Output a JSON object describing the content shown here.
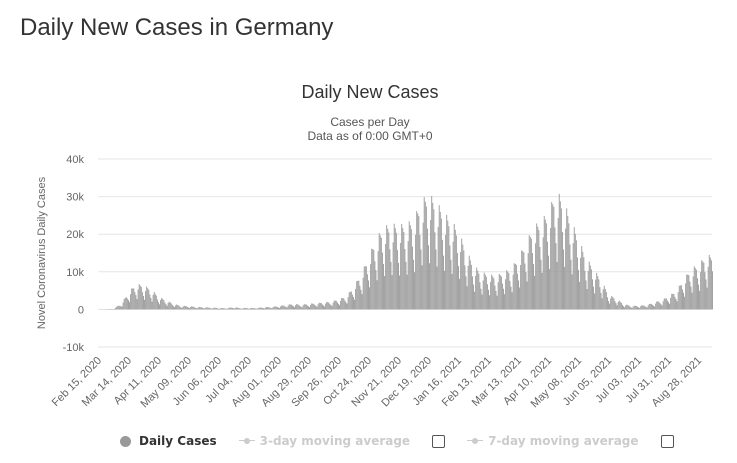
{
  "page_title": "Daily New Cases in Germany",
  "colors": {
    "bar": "#999999",
    "grid": "#e6e6e6",
    "text": "#333333",
    "legend_inactive": "#cccccc"
  },
  "legend": {
    "daily_cases": "Daily Cases",
    "avg3": "3-day moving average",
    "avg7": "7-day moving average"
  },
  "chart_data": {
    "type": "bar",
    "title": "Daily New Cases",
    "subtitle": "Cases per Day",
    "subtitle2": "Data as of 0:00 GMT+0",
    "ylabel": "Novel Coronavirus Daily Cases",
    "xlabel": "",
    "ylim": [
      -10000,
      40000
    ],
    "y_ticks": [
      -10000,
      0,
      10000,
      20000,
      30000,
      40000
    ],
    "y_tick_labels": [
      "-10k",
      "0",
      "10k",
      "20k",
      "30k",
      "40k"
    ],
    "grid": true,
    "legend_position": "bottom",
    "x_start": "2020-02-15",
    "x_end": "2021-09-10",
    "x_tick_dates": [
      "2020-02-15",
      "2020-03-14",
      "2020-04-11",
      "2020-05-09",
      "2020-06-06",
      "2020-07-04",
      "2020-08-01",
      "2020-08-29",
      "2020-09-26",
      "2020-10-24",
      "2020-11-21",
      "2020-12-19",
      "2021-01-16",
      "2021-02-13",
      "2021-03-13",
      "2021-04-10",
      "2021-05-08",
      "2021-06-05",
      "2021-07-03",
      "2021-07-31",
      "2021-08-28"
    ],
    "x_tick_labels": [
      "Feb 15, 2020",
      "Mar 14, 2020",
      "Apr 11, 2020",
      "May 09, 2020",
      "Jun 06, 2020",
      "Jul 04, 2020",
      "Aug 01, 2020",
      "Aug 29, 2020",
      "Sep 26, 2020",
      "Oct 24, 2020",
      "Nov 21, 2020",
      "Dec 19, 2020",
      "Jan 16, 2021",
      "Feb 13, 2021",
      "Mar 13, 2021",
      "Apr 10, 2021",
      "May 08, 2021",
      "Jun 05, 2021",
      "Jul 03, 2021",
      "Jul 31, 2021",
      "Aug 28, 2021"
    ],
    "weekly_series": {
      "name": "Daily Cases",
      "week_start_dates": [
        "2020-02-15",
        "2020-02-22",
        "2020-02-29",
        "2020-03-07",
        "2020-03-14",
        "2020-03-21",
        "2020-03-28",
        "2020-04-04",
        "2020-04-11",
        "2020-04-18",
        "2020-04-25",
        "2020-05-02",
        "2020-05-09",
        "2020-05-16",
        "2020-05-23",
        "2020-05-30",
        "2020-06-06",
        "2020-06-13",
        "2020-06-20",
        "2020-06-27",
        "2020-07-04",
        "2020-07-11",
        "2020-07-18",
        "2020-07-25",
        "2020-08-01",
        "2020-08-08",
        "2020-08-15",
        "2020-08-22",
        "2020-08-29",
        "2020-09-05",
        "2020-09-12",
        "2020-09-19",
        "2020-09-26",
        "2020-10-03",
        "2020-10-10",
        "2020-10-17",
        "2020-10-24",
        "2020-10-31",
        "2020-11-07",
        "2020-11-14",
        "2020-11-21",
        "2020-11-28",
        "2020-12-05",
        "2020-12-12",
        "2020-12-19",
        "2020-12-26",
        "2021-01-02",
        "2021-01-09",
        "2021-01-16",
        "2021-01-23",
        "2021-01-30",
        "2021-02-06",
        "2021-02-13",
        "2021-02-20",
        "2021-02-27",
        "2021-03-06",
        "2021-03-13",
        "2021-03-20",
        "2021-03-27",
        "2021-04-03",
        "2021-04-10",
        "2021-04-17",
        "2021-04-24",
        "2021-05-01",
        "2021-05-08",
        "2021-05-15",
        "2021-05-22",
        "2021-05-29",
        "2021-06-05",
        "2021-06-12",
        "2021-06-19",
        "2021-06-26",
        "2021-07-03",
        "2021-07-10",
        "2021-07-17",
        "2021-07-24",
        "2021-07-31",
        "2021-08-07",
        "2021-08-14",
        "2021-08-21",
        "2021-08-28",
        "2021-09-04"
      ],
      "peak_values": [
        10,
        50,
        150,
        1500,
        4500,
        6900,
        6500,
        5500,
        3500,
        2500,
        1500,
        1000,
        900,
        700,
        600,
        500,
        400,
        350,
        600,
        400,
        400,
        400,
        600,
        700,
        900,
        1200,
        1500,
        1300,
        1500,
        1700,
        1900,
        2100,
        2700,
        3500,
        6000,
        9500,
        14000,
        19000,
        22000,
        23000,
        22500,
        23000,
        24000,
        29000,
        31000,
        29000,
        26000,
        24000,
        21000,
        16000,
        12000,
        10000,
        9500,
        9000,
        10000,
        11000,
        14000,
        18000,
        22000,
        24000,
        26000,
        32000,
        29000,
        24000,
        19000,
        14000,
        11000,
        8000,
        4000,
        3000,
        1500,
        1000,
        1000,
        1200,
        1800,
        2500,
        3500,
        5000,
        8000,
        11000,
        12000,
        14500
      ]
    }
  }
}
